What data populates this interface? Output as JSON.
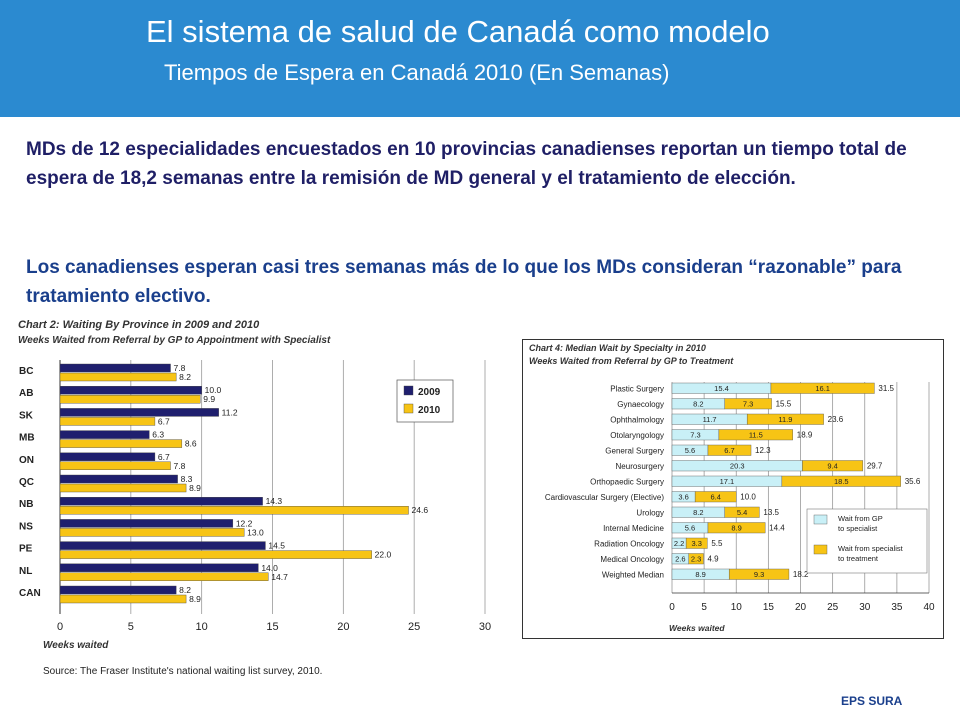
{
  "header": {
    "title": "El sistema de salud de Canadá como modelo",
    "subtitle": "Tiempos de Espera en Canadá 2010 (En Semanas)"
  },
  "body": {
    "paragraph1": "MDs de 12 especialidades encuestados en 10 provincias canadienses reportan un tiempo total de espera de 18,2 semanas entre la remisión de MD  general y el tratamiento de elección.",
    "paragraph2": "Los canadienses esperan casi tres semanas más de lo que los MDs consideran “razonable” para tratamiento electivo."
  },
  "footer": {
    "brand": "EPS SURA"
  },
  "colors": {
    "header": "#2b8ad0",
    "series2009": "#1f1f6e",
    "series2010": "#f7c415",
    "specialist": "#c9f0f7",
    "treatment": "#f7c415"
  },
  "chart_data": [
    {
      "type": "bar",
      "orientation": "horizontal",
      "title": "Chart 2: Waiting By Province in 2009 and 2010",
      "subtitle": "Weeks Waited from Referral by GP to Appointment with Specialist",
      "xlabel": "Weeks waited",
      "source": "Source: The Fraser Institute's national waiting list survey, 2010.",
      "categories": [
        "BC",
        "AB",
        "SK",
        "MB",
        "ON",
        "QC",
        "NB",
        "NS",
        "PE",
        "NL",
        "CAN"
      ],
      "series": [
        {
          "name": "2009",
          "values": [
            7.8,
            10.0,
            11.2,
            6.3,
            6.7,
            8.3,
            14.3,
            12.2,
            14.5,
            14.0,
            8.2
          ]
        },
        {
          "name": "2010",
          "values": [
            8.2,
            9.9,
            6.7,
            8.6,
            7.8,
            8.9,
            24.6,
            13.0,
            22.0,
            14.7,
            8.9
          ]
        }
      ],
      "value_labels": [
        [
          "7.8",
          "10.0",
          "11.2",
          "6.3",
          "6.7",
          "8.3",
          "14.3",
          "12.2",
          "14.5",
          "14.0",
          "8.2"
        ],
        [
          "8.2",
          "9.9",
          "6.7",
          "8.6",
          "7.8",
          "8.9",
          "24.6",
          "13.0",
          "22.0",
          "14.7",
          "8.9"
        ]
      ],
      "xlim": [
        0,
        30
      ],
      "xticks": [
        0,
        5,
        10,
        15,
        20,
        25,
        30
      ],
      "grid": "vertical",
      "legend": "top-right"
    },
    {
      "type": "bar",
      "orientation": "horizontal",
      "stacked": true,
      "title": "Chart 4: Median Wait by Specialty in 2010",
      "subtitle": "Weeks Waited from Referral by GP to Treatment",
      "xlabel": "Weeks waited",
      "categories": [
        "Plastic Surgery",
        "Gynaecology",
        "Ophthalmology",
        "Otolaryngology",
        "General Surgery",
        "Neurosurgery",
        "Orthopaedic Surgery",
        "Cardiovascular Surgery (Elective)",
        "Urology",
        "Internal Medicine",
        "Radiation Oncology",
        "Medical Oncology",
        "Weighted Median"
      ],
      "series": [
        {
          "name": "Wait from GP to specialist",
          "values": [
            15.4,
            8.2,
            11.7,
            7.3,
            5.6,
            20.3,
            17.1,
            3.6,
            8.2,
            5.6,
            2.2,
            2.6,
            8.9
          ]
        },
        {
          "name": "Wait from specialist to treatment",
          "values": [
            16.1,
            7.3,
            11.9,
            11.5,
            6.7,
            9.4,
            18.5,
            6.4,
            5.4,
            8.9,
            3.3,
            2.3,
            9.3
          ]
        }
      ],
      "segment_labels": [
        [
          "15.4",
          "8.2",
          "11.7",
          "7.3",
          "5.6",
          "20.3",
          "17.1",
          "3.6",
          "8.2",
          "5.6",
          "2.2",
          "2.6",
          "8.9"
        ],
        [
          "16.1",
          "7.3",
          "11.9",
          "11.5",
          "6.7",
          "9.4",
          "18.5",
          "6.4",
          "5.4",
          "8.9",
          "3.3",
          "2.3",
          "9.3"
        ]
      ],
      "totals": [
        "31.5",
        "15.5",
        "23.6",
        "18.9",
        "12.3",
        "29.7",
        "35.6",
        "10.0",
        "13.5",
        "14.4",
        "5.5",
        "4.9",
        "18.2"
      ],
      "xlim": [
        0,
        40
      ],
      "xticks": [
        0,
        5,
        10,
        15,
        20,
        25,
        30,
        35,
        40
      ],
      "grid": "vertical",
      "legend": "bottom-right"
    }
  ]
}
